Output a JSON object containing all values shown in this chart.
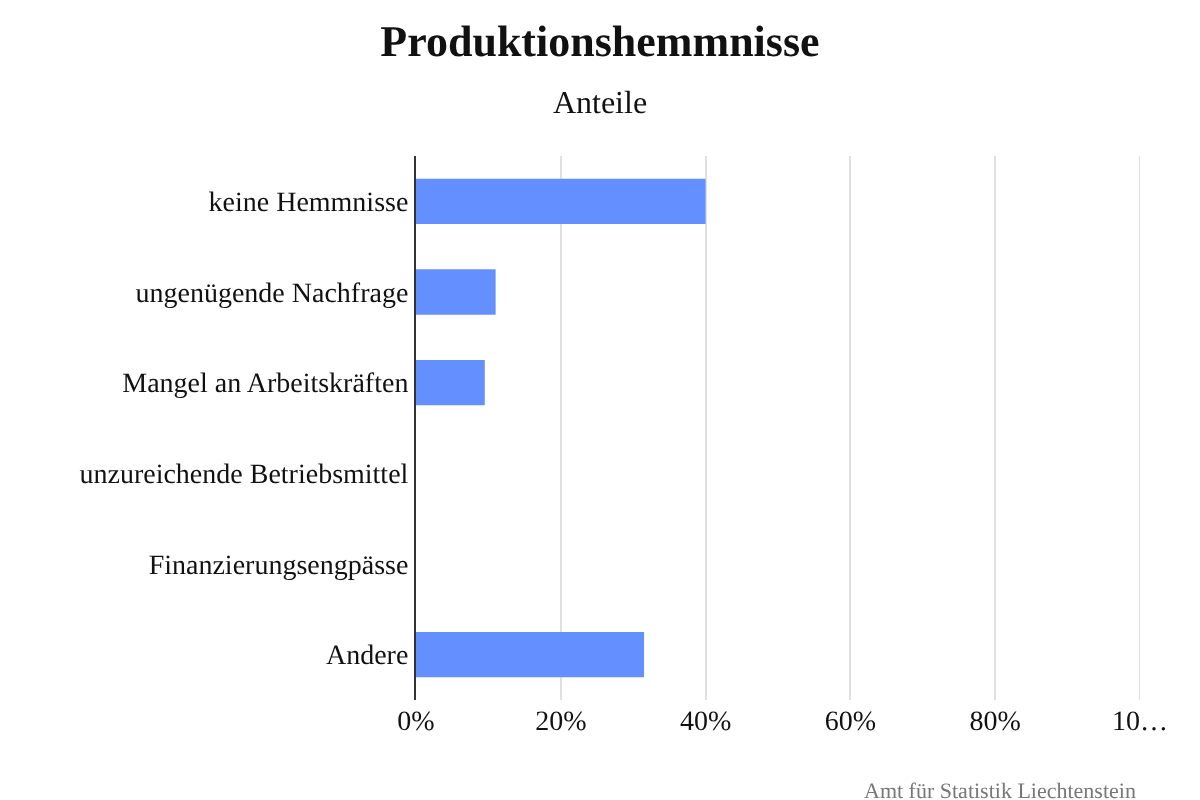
{
  "chart_data": {
    "type": "bar",
    "orientation": "horizontal",
    "title": "Produktionshemmnisse",
    "subtitle": "Anteile",
    "categories": [
      "keine Hemmnisse",
      "ungenügende Nachfrage",
      "Mangel an Arbeitskräften",
      "unzureichende Betriebsmittel",
      "Finanzierungsengpässe",
      "Andere"
    ],
    "values": [
      40,
      11,
      9.5,
      0,
      0,
      31.5
    ],
    "color": "#6490ff",
    "xlim": [
      0,
      100
    ],
    "xticks": [
      {
        "value": 0,
        "label": "0%"
      },
      {
        "value": 20,
        "label": "20%"
      },
      {
        "value": 40,
        "label": "40%"
      },
      {
        "value": 60,
        "label": "60%"
      },
      {
        "value": 80,
        "label": "80%"
      },
      {
        "value": 100,
        "label": "10…"
      }
    ],
    "grid": "x",
    "annotations": [
      "Amt für Statistik Liechtenstein"
    ]
  }
}
